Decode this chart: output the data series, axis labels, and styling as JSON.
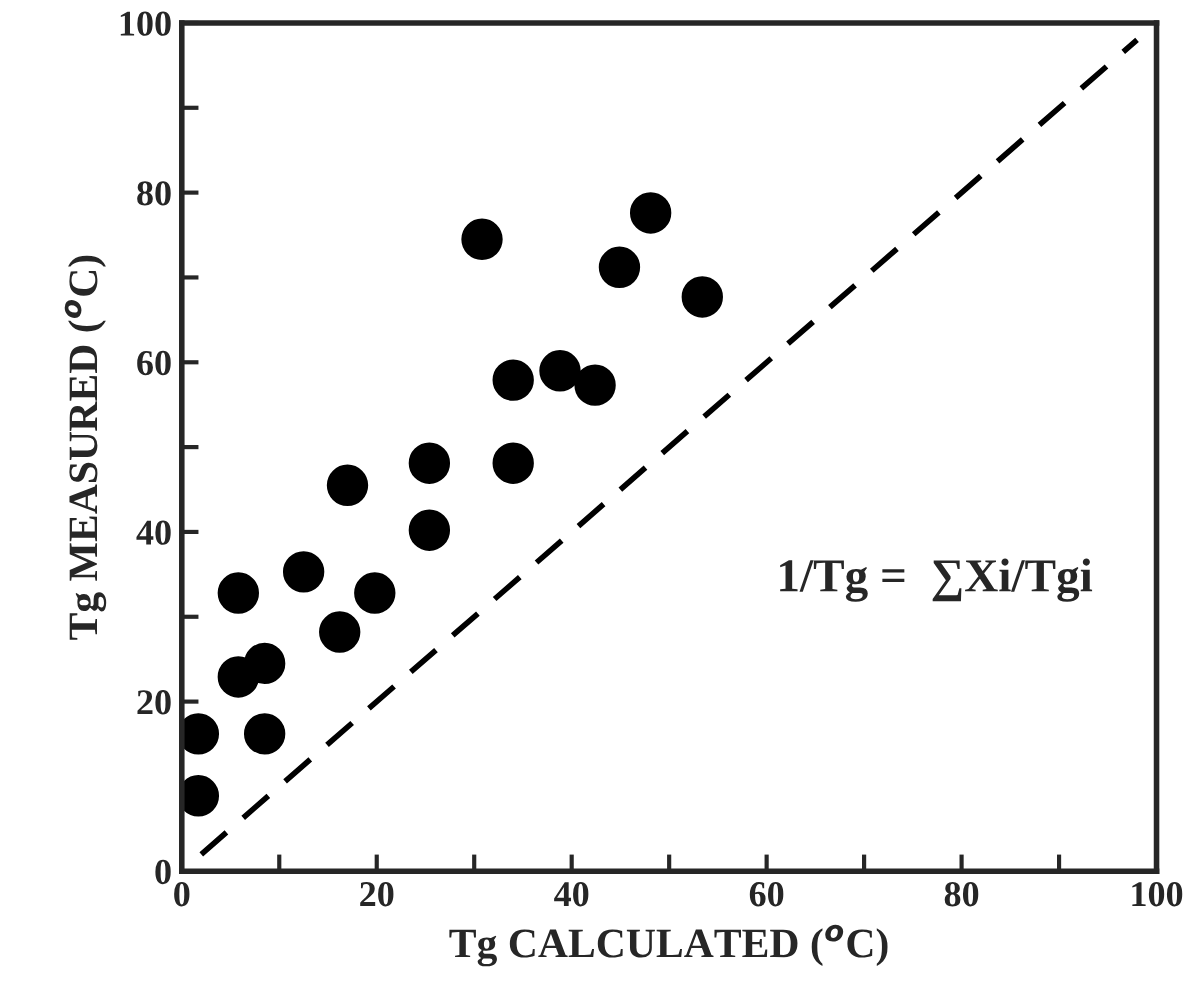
{
  "chart_data": {
    "type": "scatter",
    "xlabel": "Tg CALCULATED ($^{o}$C)",
    "ylabel": "Tg MEASURED ($^{o}$C)",
    "annotations": [
      "1/Tg =  ∑Xi/Tgi"
    ],
    "xlim": [
      0,
      100
    ],
    "ylim": [
      0,
      100
    ],
    "xticks": [
      0,
      {
        "value": 10,
        "label": null
      },
      20,
      {
        "value": 30,
        "label": null
      },
      40,
      {
        "value": 50,
        "label": null
      },
      60,
      {
        "value": 70,
        "label": null
      },
      80,
      {
        "value": 90,
        "label": null
      },
      100
    ],
    "yticks": [
      0,
      {
        "value": 10,
        "label": null
      },
      20,
      {
        "value": 30,
        "label": null
      },
      40,
      {
        "value": 50,
        "label": null
      },
      60,
      {
        "value": 70,
        "label": null
      },
      80,
      {
        "value": 90,
        "label": null
      },
      100
    ],
    "grid": false,
    "legend": false,
    "marker": "circle",
    "series": [
      {
        "color": "#000000",
        "x": [
          1.7,
          1.7,
          5.8,
          5.8,
          8.5,
          8.5,
          12.5,
          16.2,
          17.0,
          19.8,
          25.4,
          25.4,
          30.8,
          34.0,
          34.0,
          38.8,
          42.4,
          44.9,
          48.1,
          53.4
        ],
        "values": [
          8.9,
          16.2,
          32.8,
          22.9,
          24.5,
          16.2,
          35.3,
          28.2,
          45.5,
          32.8,
          48.1,
          40.2,
          74.5,
          57.9,
          48.1,
          59.0,
          57.3,
          71.2,
          77.6,
          67.7
        ]
      },
      {
        "type": "line",
        "color": "#000000",
        "line_style": "dashed",
        "marker": "none",
        "x": [
          2,
          98
        ],
        "values": [
          2,
          98
        ]
      }
    ]
  }
}
